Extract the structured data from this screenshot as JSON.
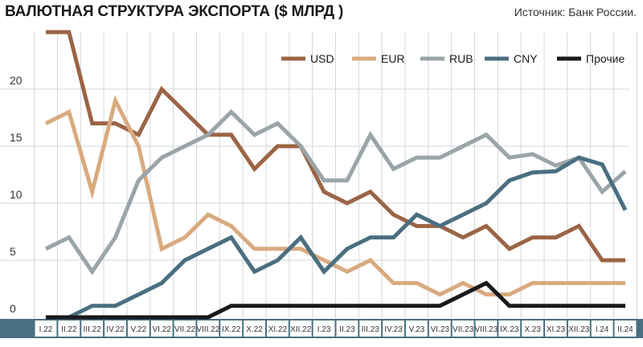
{
  "header": {
    "title": "ВАЛЮТНАЯ СТРУКТУРА ЭКСПОРТА ($ МЛРД )",
    "source": "Источник: Банк России."
  },
  "colors": {
    "USD": "#9b6445",
    "EUR": "#d9aa7e",
    "RUB": "#9aa5a9",
    "CNY": "#4a6f80",
    "Прочие": "#1a1a1a",
    "axis_band": "#4a6f80",
    "grid": "#d2d7da"
  },
  "chart_data": {
    "type": "line",
    "title": "ВАЛЮТНАЯ СТРУКТУРА ЭКСПОРТА ($ МЛРД )",
    "xlabel": "",
    "ylabel": "",
    "ylim": [
      0,
      25
    ],
    "yticks": [
      "0",
      "5",
      "10",
      "15",
      "20"
    ],
    "grid": true,
    "legend_position": "top-right",
    "categories": [
      "I.22",
      "II.22",
      "III.22",
      "IV.22",
      "V.22",
      "VI.22",
      "VII.22",
      "VIII.22",
      "IX.22",
      "X.22",
      "XI.22",
      "XII.22",
      "I.23",
      "II.23",
      "III.23",
      "IV.23",
      "V.23",
      "VI.23",
      "VII.23",
      "VIII.23",
      "IX.23",
      "X.23",
      "XI.23",
      "XII.23",
      "I.24",
      "II.24"
    ],
    "series": [
      {
        "name": "USD",
        "values": [
          25,
          25,
          17,
          17,
          16,
          20,
          18,
          16,
          16,
          13,
          15,
          15,
          11,
          10,
          11,
          9,
          8,
          8,
          7,
          8,
          6,
          7,
          7,
          8,
          5,
          5
        ]
      },
      {
        "name": "EUR",
        "values": [
          17,
          18,
          11,
          19,
          15,
          6,
          7,
          9,
          8,
          6,
          6,
          6,
          5,
          4,
          5,
          3,
          3,
          2,
          3,
          2,
          2,
          3,
          3,
          3,
          3,
          3
        ]
      },
      {
        "name": "RUB",
        "values": [
          6,
          7,
          4,
          7,
          12,
          14,
          15,
          16,
          18,
          16,
          17,
          15,
          12,
          12,
          16,
          13,
          14,
          14,
          15,
          16,
          14,
          14.3,
          13.3,
          14,
          11,
          12.8
        ]
      },
      {
        "name": "CNY",
        "values": [
          0,
          0,
          1,
          1,
          2,
          3,
          5,
          6,
          7,
          4,
          5,
          7,
          4,
          6,
          7,
          7,
          9,
          8,
          9,
          10,
          12,
          12.7,
          12.8,
          14,
          13.4,
          9.4
        ]
      },
      {
        "name": "Прочие",
        "values": [
          0,
          0,
          0,
          0,
          0,
          0,
          0,
          0,
          1,
          1,
          1,
          1,
          1,
          1,
          1,
          1,
          1,
          1,
          2,
          3,
          1,
          1,
          1,
          1,
          1,
          1
        ]
      }
    ]
  }
}
